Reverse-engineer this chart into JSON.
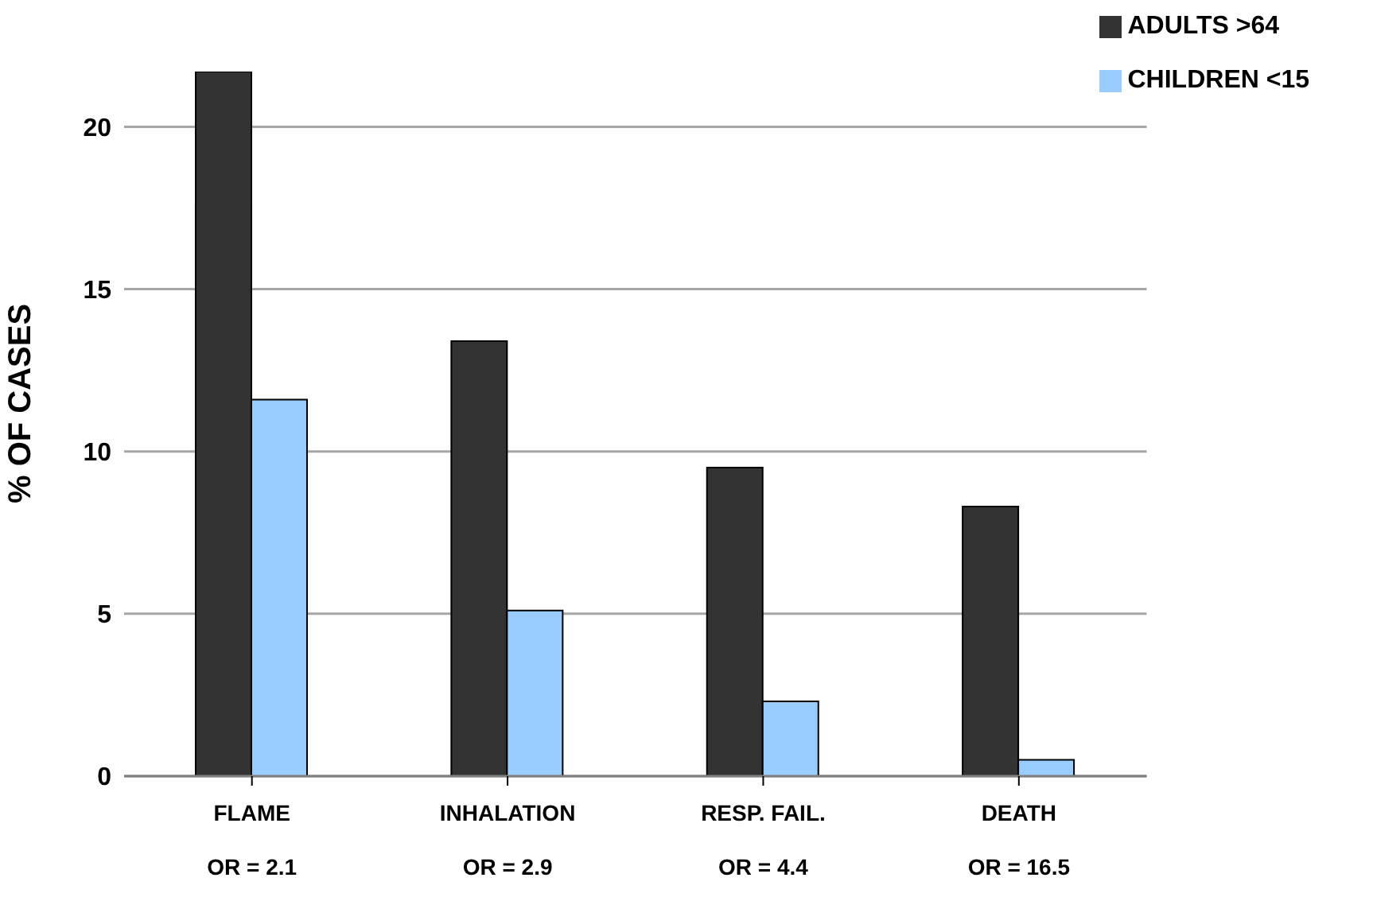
{
  "chart_data": {
    "type": "bar",
    "ylabel": "% OF CASES",
    "categories": [
      "FLAME",
      "INHALATION",
      "RESP. FAIL.",
      "DEATH"
    ],
    "series": [
      {
        "name": "ADULTS >64",
        "color": "#333333",
        "values": [
          21.7,
          13.4,
          9.5,
          8.3
        ]
      },
      {
        "name": "CHILDREN <15",
        "color": "#99ccff",
        "values": [
          11.6,
          5.1,
          2.3,
          0.5
        ]
      }
    ],
    "annotations": [
      "OR = 2.1",
      "OR = 2.9",
      "OR = 4.4",
      "OR = 16.5"
    ],
    "ylim": [
      0,
      21.7
    ],
    "yticks": [
      0,
      5,
      10,
      15,
      20
    ],
    "grid": "y",
    "legend": "top right"
  }
}
